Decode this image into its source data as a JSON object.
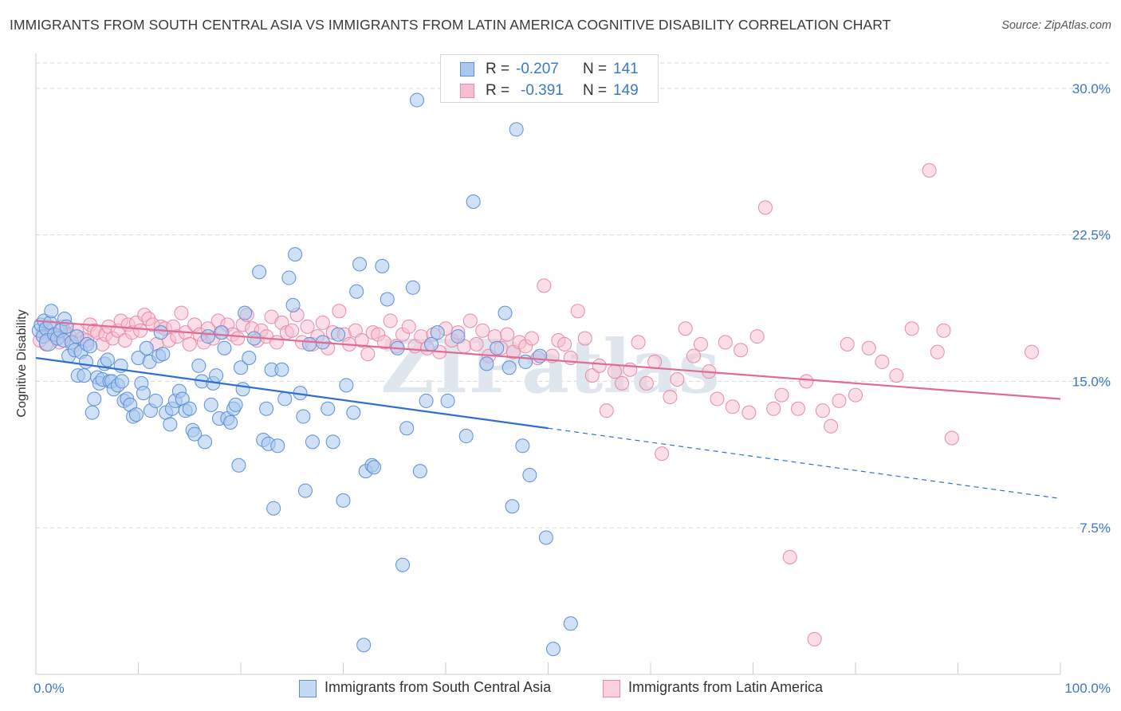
{
  "header": {
    "title": "IMMIGRANTS FROM SOUTH CENTRAL ASIA VS IMMIGRANTS FROM LATIN AMERICA COGNITIVE DISABILITY CORRELATION CHART",
    "source": "Source: ZipAtlas.com"
  },
  "legend": {
    "series": [
      {
        "r_label": "R =",
        "r_value": "-0.207",
        "n_label": "N =",
        "n_value": "141"
      },
      {
        "r_label": "R =",
        "r_value": "-0.391",
        "n_label": "N =",
        "n_value": "149"
      }
    ]
  },
  "colors": {
    "blue_fill": "#aac8ef",
    "blue_stroke": "#5b8fd9",
    "blue_line": "#2f6fd0",
    "pink_fill": "#f7bed0",
    "pink_stroke": "#e88aaa",
    "pink_line": "#e06b93",
    "axis_label": "#3a78c9",
    "grid": "#d9d9d9",
    "watermark": "#dfe6ee"
  },
  "chart_data": {
    "type": "scatter",
    "title": "IMMIGRANTS FROM SOUTH CENTRAL ASIA VS IMMIGRANTS FROM LATIN AMERICA COGNITIVE DISABILITY CORRELATION CHART",
    "xlabel": "",
    "ylabel": "Cognitive Disability",
    "xlim": [
      0,
      100
    ],
    "ylim": [
      0,
      31.3
    ],
    "x_tick_labels": {
      "min": "0.0%",
      "max": "100.0%"
    },
    "y_ticks": [
      {
        "value": 7.5,
        "label": "7.5%"
      },
      {
        "value": 15.0,
        "label": "15.0%"
      },
      {
        "value": 22.5,
        "label": "22.5%"
      },
      {
        "value": 30.0,
        "label": "30.0%"
      }
    ],
    "watermark": "ZIPatlas",
    "series": [
      {
        "name": "Immigrants from South Central Asia",
        "color": "#aac8ef",
        "trend": {
          "x0": 0,
          "y0": 16.2,
          "x1": 50,
          "y1": 12.6,
          "dash_to_x": 100,
          "dash_to_y": 9.0
        },
        "points": [
          [
            0.3,
            17.6
          ],
          [
            0.5,
            17.9
          ],
          [
            0.7,
            17.3
          ],
          [
            0.8,
            18.1
          ],
          [
            1.0,
            17.7
          ],
          [
            1.2,
            17.0
          ],
          [
            1.4,
            18.0
          ],
          [
            1.5,
            18.6
          ],
          [
            1.8,
            17.4
          ],
          [
            2.1,
            17.2
          ],
          [
            2.4,
            17.6
          ],
          [
            2.7,
            17.1
          ],
          [
            2.8,
            18.2
          ],
          [
            3.0,
            17.8
          ],
          [
            3.2,
            16.3
          ],
          [
            3.5,
            17.0
          ],
          [
            3.8,
            16.6
          ],
          [
            4.0,
            17.3
          ],
          [
            4.1,
            15.3
          ],
          [
            4.4,
            16.5
          ],
          [
            4.7,
            15.3
          ],
          [
            4.9,
            16.0
          ],
          [
            5.0,
            16.9
          ],
          [
            5.3,
            16.8
          ],
          [
            5.5,
            13.4
          ],
          [
            5.7,
            14.1
          ],
          [
            6.0,
            15.2
          ],
          [
            6.2,
            14.9
          ],
          [
            6.5,
            15.1
          ],
          [
            6.7,
            15.9
          ],
          [
            7.0,
            16.1
          ],
          [
            7.2,
            15.0
          ],
          [
            7.4,
            15.0
          ],
          [
            7.6,
            14.6
          ],
          [
            8.0,
            14.8
          ],
          [
            8.3,
            15.8
          ],
          [
            8.4,
            15.0
          ],
          [
            8.6,
            14.0
          ],
          [
            8.9,
            14.1
          ],
          [
            9.2,
            13.8
          ],
          [
            9.5,
            13.2
          ],
          [
            9.8,
            13.3
          ],
          [
            10.0,
            16.2
          ],
          [
            10.3,
            14.9
          ],
          [
            10.5,
            14.4
          ],
          [
            10.8,
            16.7
          ],
          [
            11.1,
            16.0
          ],
          [
            11.2,
            13.5
          ],
          [
            11.7,
            14.0
          ],
          [
            12.0,
            16.3
          ],
          [
            12.2,
            17.5
          ],
          [
            12.4,
            16.4
          ],
          [
            12.7,
            13.4
          ],
          [
            13.1,
            12.8
          ],
          [
            13.3,
            13.6
          ],
          [
            13.6,
            14.0
          ],
          [
            14.0,
            14.5
          ],
          [
            14.3,
            14.1
          ],
          [
            14.6,
            13.5
          ],
          [
            15.0,
            13.6
          ],
          [
            15.3,
            12.5
          ],
          [
            15.5,
            12.3
          ],
          [
            15.9,
            15.8
          ],
          [
            16.2,
            15.0
          ],
          [
            16.5,
            11.9
          ],
          [
            16.8,
            17.3
          ],
          [
            17.1,
            13.8
          ],
          [
            17.3,
            14.9
          ],
          [
            17.6,
            15.3
          ],
          [
            17.9,
            13.1
          ],
          [
            18.1,
            17.5
          ],
          [
            18.4,
            16.7
          ],
          [
            18.7,
            13.1
          ],
          [
            19.0,
            12.9
          ],
          [
            19.3,
            13.6
          ],
          [
            19.5,
            13.8
          ],
          [
            19.8,
            10.7
          ],
          [
            20.0,
            15.7
          ],
          [
            20.2,
            14.6
          ],
          [
            20.4,
            18.5
          ],
          [
            20.8,
            16.2
          ],
          [
            21.3,
            17.2
          ],
          [
            21.8,
            20.6
          ],
          [
            22.2,
            12.0
          ],
          [
            22.5,
            13.6
          ],
          [
            22.7,
            11.8
          ],
          [
            23.0,
            15.6
          ],
          [
            23.2,
            8.5
          ],
          [
            23.6,
            11.7
          ],
          [
            24.0,
            15.6
          ],
          [
            24.3,
            14.1
          ],
          [
            24.7,
            20.3
          ],
          [
            25.1,
            18.9
          ],
          [
            25.3,
            21.5
          ],
          [
            25.8,
            14.4
          ],
          [
            26.1,
            13.2
          ],
          [
            26.3,
            9.4
          ],
          [
            26.7,
            16.9
          ],
          [
            27.0,
            11.9
          ],
          [
            28.0,
            17.0
          ],
          [
            28.5,
            13.6
          ],
          [
            29.0,
            11.9
          ],
          [
            29.5,
            17.4
          ],
          [
            30.0,
            8.9
          ],
          [
            30.3,
            14.8
          ],
          [
            31.0,
            13.4
          ],
          [
            31.3,
            19.6
          ],
          [
            31.6,
            21.0
          ],
          [
            32.0,
            1.5
          ],
          [
            32.2,
            10.4
          ],
          [
            32.8,
            10.7
          ],
          [
            33.0,
            10.6
          ],
          [
            33.8,
            20.9
          ],
          [
            34.3,
            19.2
          ],
          [
            35.3,
            16.7
          ],
          [
            35.8,
            5.6
          ],
          [
            36.2,
            12.6
          ],
          [
            36.8,
            19.8
          ],
          [
            37.2,
            29.4
          ],
          [
            37.5,
            10.4
          ],
          [
            38.1,
            14.0
          ],
          [
            38.6,
            16.9
          ],
          [
            39.2,
            17.5
          ],
          [
            40.2,
            14.0
          ],
          [
            41.2,
            17.3
          ],
          [
            42.0,
            12.2
          ],
          [
            42.7,
            24.2
          ],
          [
            44.0,
            15.9
          ],
          [
            45.0,
            16.7
          ],
          [
            45.8,
            18.5
          ],
          [
            46.2,
            15.7
          ],
          [
            46.5,
            8.6
          ],
          [
            46.9,
            27.9
          ],
          [
            47.5,
            11.7
          ],
          [
            47.8,
            16.0
          ],
          [
            48.2,
            10.2
          ],
          [
            49.2,
            16.3
          ],
          [
            49.8,
            7.0
          ],
          [
            50.5,
            1.3
          ],
          [
            52.2,
            2.6
          ]
        ]
      },
      {
        "name": "Immigrants from Latin America",
        "color": "#f7bed0",
        "trend": {
          "x0": 0,
          "y0": 18.1,
          "x1": 100,
          "y1": 14.1
        },
        "points": [
          [
            0.4,
            17.1
          ],
          [
            0.7,
            17.5
          ],
          [
            1.0,
            16.9
          ],
          [
            1.3,
            17.8
          ],
          [
            1.6,
            17.4
          ],
          [
            2.0,
            17.3
          ],
          [
            2.3,
            17.0
          ],
          [
            2.6,
            17.8
          ],
          [
            2.9,
            17.5
          ],
          [
            3.2,
            17.4
          ],
          [
            3.6,
            16.8
          ],
          [
            4.0,
            17.6
          ],
          [
            4.5,
            17.2
          ],
          [
            5.0,
            17.1
          ],
          [
            5.3,
            17.9
          ],
          [
            5.7,
            17.6
          ],
          [
            6.0,
            17.5
          ],
          [
            6.5,
            16.9
          ],
          [
            6.8,
            17.4
          ],
          [
            7.1,
            17.8
          ],
          [
            7.5,
            17.2
          ],
          [
            8.0,
            17.6
          ],
          [
            8.3,
            18.1
          ],
          [
            8.7,
            17.1
          ],
          [
            9.0,
            17.9
          ],
          [
            9.4,
            17.5
          ],
          [
            9.8,
            18.0
          ],
          [
            10.2,
            17.6
          ],
          [
            10.6,
            18.4
          ],
          [
            11.0,
            18.2
          ],
          [
            11.4,
            17.9
          ],
          [
            11.8,
            16.9
          ],
          [
            12.2,
            17.8
          ],
          [
            12.6,
            17.7
          ],
          [
            13.0,
            17.1
          ],
          [
            13.4,
            17.8
          ],
          [
            13.8,
            17.3
          ],
          [
            14.2,
            18.5
          ],
          [
            14.6,
            17.5
          ],
          [
            15.0,
            16.9
          ],
          [
            15.5,
            17.9
          ],
          [
            16.0,
            17.4
          ],
          [
            16.4,
            17.0
          ],
          [
            16.8,
            17.7
          ],
          [
            17.3,
            17.2
          ],
          [
            17.8,
            18.1
          ],
          [
            18.2,
            17.5
          ],
          [
            18.7,
            17.9
          ],
          [
            19.2,
            17.4
          ],
          [
            19.7,
            17.2
          ],
          [
            20.2,
            17.9
          ],
          [
            20.6,
            18.4
          ],
          [
            21.1,
            17.7
          ],
          [
            21.6,
            17.1
          ],
          [
            22.0,
            17.6
          ],
          [
            22.5,
            17.3
          ],
          [
            23.0,
            18.3
          ],
          [
            23.5,
            17.0
          ],
          [
            24.0,
            18.0
          ],
          [
            24.5,
            17.5
          ],
          [
            25.0,
            17.6
          ],
          [
            25.5,
            18.4
          ],
          [
            26.0,
            17.0
          ],
          [
            26.5,
            17.8
          ],
          [
            27.0,
            16.9
          ],
          [
            27.5,
            17.3
          ],
          [
            28.0,
            18.0
          ],
          [
            28.5,
            16.7
          ],
          [
            29.0,
            17.5
          ],
          [
            29.6,
            18.6
          ],
          [
            30.1,
            17.4
          ],
          [
            30.6,
            16.9
          ],
          [
            31.2,
            17.6
          ],
          [
            31.8,
            17.1
          ],
          [
            32.4,
            16.4
          ],
          [
            32.9,
            17.5
          ],
          [
            33.4,
            17.4
          ],
          [
            34.0,
            17.0
          ],
          [
            34.6,
            18.1
          ],
          [
            35.2,
            16.8
          ],
          [
            35.8,
            17.4
          ],
          [
            36.4,
            17.8
          ],
          [
            37.0,
            16.8
          ],
          [
            37.6,
            17.3
          ],
          [
            38.2,
            16.7
          ],
          [
            38.8,
            17.4
          ],
          [
            39.4,
            16.5
          ],
          [
            40.0,
            17.7
          ],
          [
            40.6,
            17.1
          ],
          [
            41.2,
            17.5
          ],
          [
            41.8,
            16.8
          ],
          [
            42.4,
            18.1
          ],
          [
            43.0,
            16.9
          ],
          [
            43.6,
            17.6
          ],
          [
            44.2,
            16.3
          ],
          [
            44.8,
            17.3
          ],
          [
            45.4,
            16.7
          ],
          [
            46.0,
            17.4
          ],
          [
            46.6,
            16.5
          ],
          [
            47.2,
            17.0
          ],
          [
            47.8,
            16.8
          ],
          [
            48.4,
            17.2
          ],
          [
            49.0,
            16.2
          ],
          [
            49.6,
            19.9
          ],
          [
            50.4,
            16.3
          ],
          [
            51.0,
            17.1
          ],
          [
            51.6,
            16.9
          ],
          [
            52.2,
            16.2
          ],
          [
            52.9,
            18.6
          ],
          [
            53.6,
            17.2
          ],
          [
            54.3,
            15.3
          ],
          [
            55.0,
            15.8
          ],
          [
            55.7,
            13.5
          ],
          [
            56.5,
            15.5
          ],
          [
            57.2,
            14.9
          ],
          [
            58.0,
            15.6
          ],
          [
            58.8,
            17.0
          ],
          [
            59.6,
            14.9
          ],
          [
            60.4,
            16.0
          ],
          [
            61.1,
            11.3
          ],
          [
            61.9,
            14.2
          ],
          [
            62.6,
            15.1
          ],
          [
            63.4,
            17.7
          ],
          [
            64.2,
            16.3
          ],
          [
            64.9,
            16.9
          ],
          [
            65.7,
            15.5
          ],
          [
            66.5,
            14.1
          ],
          [
            67.3,
            17.0
          ],
          [
            68.0,
            13.7
          ],
          [
            68.8,
            16.6
          ],
          [
            69.6,
            13.4
          ],
          [
            70.4,
            17.3
          ],
          [
            71.2,
            23.9
          ],
          [
            72.0,
            13.6
          ],
          [
            72.8,
            14.3
          ],
          [
            73.6,
            6.0
          ],
          [
            74.4,
            13.6
          ],
          [
            75.2,
            15.0
          ],
          [
            76.0,
            1.8
          ],
          [
            76.8,
            13.5
          ],
          [
            77.6,
            12.7
          ],
          [
            78.4,
            14.0
          ],
          [
            79.2,
            16.9
          ],
          [
            80.0,
            14.3
          ],
          [
            81.3,
            16.7
          ],
          [
            82.6,
            16.0
          ],
          [
            84.0,
            15.3
          ],
          [
            85.5,
            17.7
          ],
          [
            87.2,
            25.8
          ],
          [
            88.0,
            16.5
          ],
          [
            88.6,
            17.6
          ],
          [
            89.4,
            12.1
          ],
          [
            97.2,
            16.5
          ]
        ]
      }
    ]
  },
  "bottom_legend": {
    "items": [
      {
        "label": "Immigrants from South Central Asia"
      },
      {
        "label": "Immigrants from Latin America"
      }
    ]
  }
}
